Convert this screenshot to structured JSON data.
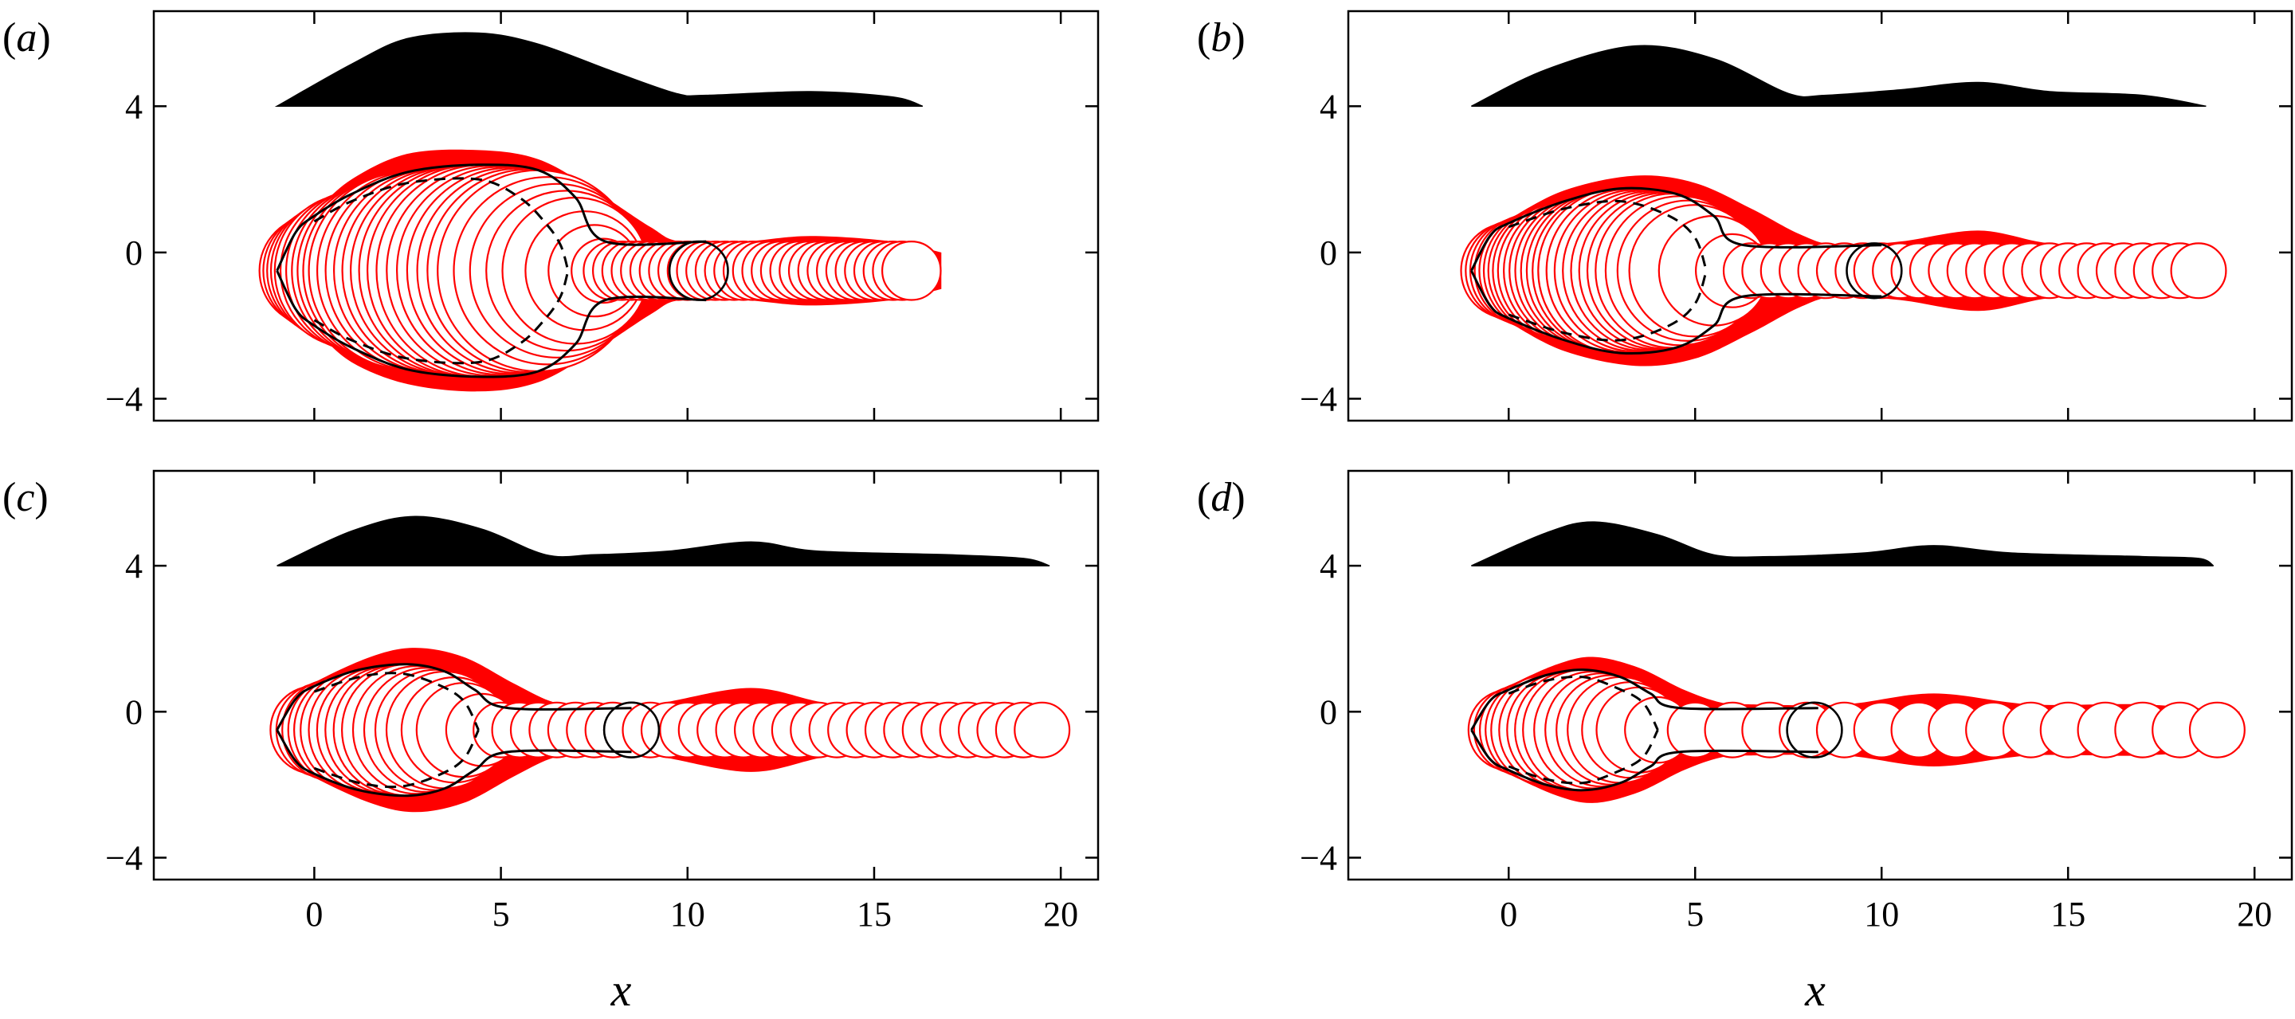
{
  "chart_data": [
    {
      "panel": "(a)",
      "type": "line",
      "xlim": [
        -4.3,
        21.0
      ],
      "ylim": [
        -4.6,
        6.6
      ],
      "xticks": [
        0,
        5,
        10,
        15,
        20
      ],
      "xtick_labels": [
        "0",
        "5",
        "10",
        "15",
        "20"
      ],
      "yticks": [
        -4,
        0,
        4
      ],
      "ytick_labels": [
        "−4",
        "0",
        "4"
      ],
      "xlabel": "",
      "profile": {
        "baseline": 4,
        "x": [
          -1.0,
          1.0,
          2.5,
          4.4,
          6.0,
          8.0,
          9.7,
          10.5,
          13.3,
          15.5,
          16.3
        ],
        "y": [
          4.0,
          5.15,
          5.85,
          6.0,
          5.7,
          4.95,
          4.35,
          4.3,
          4.4,
          4.25,
          4.0
        ]
      },
      "envelope": {
        "x": [
          -1.0,
          -0.5,
          0.0,
          1.0,
          2.5,
          4.4,
          6.0,
          7.5,
          9.0,
          9.8,
          11.5,
          13.3,
          15.5,
          16.8
        ],
        "upper": [
          -0.5,
          0.6,
          1.1,
          2.0,
          2.7,
          2.8,
          2.55,
          1.7,
          0.7,
          0.3,
          0.3,
          0.45,
          0.3,
          0.0
        ],
        "lower": [
          -0.5,
          -1.6,
          -2.1,
          -3.0,
          -3.6,
          -3.8,
          -3.55,
          -2.7,
          -1.7,
          -1.3,
          -1.3,
          -1.45,
          -1.3,
          -1.0
        ]
      },
      "inner_solid": {
        "x": [
          -1.0,
          -0.5,
          0.0,
          1.0,
          2.5,
          4.4,
          6.0,
          7.0,
          7.8,
          10.5
        ],
        "upper": [
          -0.5,
          0.55,
          1.0,
          1.6,
          2.2,
          2.4,
          2.25,
          1.5,
          0.3,
          0.3
        ],
        "lower": [
          -0.5,
          -1.55,
          -2.0,
          -2.6,
          -3.2,
          -3.4,
          -3.25,
          -2.5,
          -1.3,
          -1.3
        ]
      },
      "dashed": {
        "x": [
          0.0,
          1.0,
          2.5,
          4.4,
          5.5,
          6.2,
          6.6,
          6.8
        ],
        "upper": [
          0.85,
          1.4,
          1.9,
          2.0,
          1.5,
          0.8,
          0.2,
          -0.5
        ],
        "lower": [
          -1.85,
          -2.4,
          -2.9,
          -3.0,
          -2.5,
          -1.8,
          -1.2,
          -0.5
        ]
      },
      "circles": {
        "centers_x": [
          0.0,
          0.25,
          0.5,
          0.75,
          1.0,
          1.25,
          1.5,
          1.75,
          2.0,
          2.25,
          2.5,
          2.75,
          3.0,
          3.25,
          3.5,
          3.75,
          4.0,
          4.25,
          4.5,
          4.75,
          5.0,
          5.25,
          5.5,
          5.75,
          6.0,
          6.25,
          6.5,
          6.75,
          7.0,
          7.25,
          7.5,
          7.75,
          8.0,
          8.25,
          8.5,
          8.75,
          9.0,
          9.25,
          9.5,
          9.75,
          10.0,
          10.25,
          10.5,
          10.75,
          11.0,
          11.25,
          11.5,
          11.75,
          12.0,
          12.25,
          12.5,
          12.75,
          13.0,
          13.25,
          13.5,
          13.75,
          14.0,
          14.25,
          14.5,
          14.75,
          15.0,
          15.25,
          15.5,
          15.75,
          16.0
        ],
        "center_y": -0.5,
        "black_x": 10.3
      }
    },
    {
      "panel": "(b)",
      "type": "line",
      "xlim": [
        -4.3,
        21.0
      ],
      "ylim": [
        -4.6,
        6.6
      ],
      "xticks": [
        0,
        5,
        10,
        15,
        20
      ],
      "xtick_labels": [
        "0",
        "5",
        "10",
        "15",
        "20"
      ],
      "yticks": [
        -4,
        0,
        4
      ],
      "ytick_labels": [
        "−4",
        "0",
        "4"
      ],
      "xlabel": "",
      "profile": {
        "baseline": 4,
        "x": [
          -1.0,
          1.0,
          3.4,
          5.5,
          7.5,
          8.5,
          10.5,
          12.6,
          14.5,
          17.0,
          18.7
        ],
        "y": [
          4.0,
          5.0,
          5.65,
          5.3,
          4.35,
          4.3,
          4.45,
          4.65,
          4.4,
          4.3,
          4.0
        ]
      },
      "envelope": {
        "x": [
          -1.0,
          -0.5,
          0.0,
          1.5,
          3.4,
          5.0,
          6.5,
          7.8,
          8.8,
          10.5,
          12.6,
          14.5,
          16.5,
          18.9
        ],
        "upper": [
          -0.5,
          0.5,
          0.9,
          1.7,
          2.1,
          1.9,
          1.2,
          0.5,
          0.2,
          0.3,
          0.6,
          0.25,
          0.2,
          0.0
        ],
        "lower": [
          -0.5,
          -1.5,
          -1.9,
          -2.7,
          -3.1,
          -2.9,
          -2.2,
          -1.5,
          -1.2,
          -1.3,
          -1.6,
          -1.25,
          -1.2,
          -1.0
        ]
      },
      "inner_solid": {
        "x": [
          -1.0,
          -0.5,
          0.0,
          1.5,
          3.0,
          4.5,
          5.5,
          6.3,
          10.0
        ],
        "upper": [
          -0.5,
          0.45,
          0.8,
          1.4,
          1.75,
          1.6,
          1.0,
          0.2,
          0.2
        ],
        "lower": [
          -0.5,
          -1.45,
          -1.8,
          -2.4,
          -2.75,
          -2.6,
          -2.0,
          -1.2,
          -1.2
        ]
      },
      "dashed": {
        "x": [
          0.0,
          1.5,
          3.0,
          4.3,
          5.0,
          5.3
        ],
        "upper": [
          0.7,
          1.2,
          1.4,
          1.0,
          0.4,
          -0.5
        ],
        "lower": [
          -1.7,
          -2.2,
          -2.4,
          -2.0,
          -1.4,
          -0.5
        ]
      },
      "circles": {
        "centers_x": [
          0.0,
          0.2,
          0.4,
          0.6,
          0.8,
          1.0,
          1.2,
          1.4,
          1.6,
          1.8,
          2.0,
          2.2,
          2.4,
          2.6,
          2.8,
          3.0,
          3.2,
          3.4,
          3.6,
          3.8,
          4.0,
          4.2,
          4.4,
          4.6,
          4.8,
          5.0,
          5.5,
          6.0,
          6.5,
          7.0,
          7.5,
          8.0,
          8.5,
          9.0,
          9.5,
          10.0,
          10.5,
          11.0,
          11.5,
          12.0,
          12.5,
          13.0,
          13.5,
          14.0,
          14.5,
          15.0,
          15.5,
          16.0,
          16.5,
          17.0,
          17.5,
          18.0,
          18.5
        ],
        "center_y": -0.5,
        "black_x": 9.8
      }
    },
    {
      "panel": "(c)",
      "type": "line",
      "xlim": [
        -4.3,
        21.0
      ],
      "ylim": [
        -4.6,
        6.6
      ],
      "xticks": [
        0,
        5,
        10,
        15,
        20
      ],
      "xtick_labels": [
        "0",
        "5",
        "10",
        "15",
        "20"
      ],
      "yticks": [
        -4,
        0,
        4
      ],
      "ytick_labels": [
        "−4",
        "0",
        "4"
      ],
      "xlabel": "x",
      "profile": {
        "baseline": 4,
        "x": [
          -1.0,
          1.0,
          2.7,
          4.5,
          6.2,
          7.5,
          9.5,
          11.7,
          13.5,
          17.0,
          19.0,
          19.7
        ],
        "y": [
          4.0,
          4.95,
          5.35,
          5.0,
          4.3,
          4.3,
          4.4,
          4.65,
          4.4,
          4.3,
          4.2,
          4.0
        ]
      },
      "envelope": {
        "x": [
          -1.0,
          -0.5,
          0.0,
          1.5,
          2.7,
          4.0,
          5.3,
          6.3,
          7.0,
          9.0,
          11.7,
          14.0,
          17.0,
          19.9
        ],
        "upper": [
          -0.5,
          0.4,
          0.8,
          1.5,
          1.75,
          1.5,
          0.8,
          0.3,
          0.2,
          0.2,
          0.65,
          0.2,
          0.2,
          0.0
        ],
        "lower": [
          -0.5,
          -1.4,
          -1.8,
          -2.5,
          -2.75,
          -2.5,
          -1.8,
          -1.3,
          -1.2,
          -1.2,
          -1.65,
          -1.2,
          -1.2,
          -1.0
        ]
      },
      "inner_solid": {
        "x": [
          -1.0,
          -0.5,
          0.0,
          1.2,
          2.5,
          3.5,
          4.3,
          5.2,
          8.5
        ],
        "upper": [
          -0.5,
          0.35,
          0.7,
          1.15,
          1.3,
          1.1,
          0.6,
          0.1,
          0.1
        ],
        "lower": [
          -0.5,
          -1.35,
          -1.7,
          -2.15,
          -2.3,
          -2.1,
          -1.6,
          -1.1,
          -1.1
        ]
      },
      "dashed": {
        "x": [
          0.0,
          1.2,
          2.3,
          3.3,
          4.0,
          4.4
        ],
        "upper": [
          0.55,
          0.95,
          1.05,
          0.75,
          0.3,
          -0.5
        ],
        "lower": [
          -1.55,
          -1.95,
          -2.05,
          -1.75,
          -1.3,
          -0.5
        ]
      },
      "circles": {
        "centers_x": [
          0.0,
          0.25,
          0.5,
          0.75,
          1.0,
          1.25,
          1.5,
          1.75,
          2.0,
          2.25,
          2.5,
          2.75,
          3.0,
          3.25,
          3.5,
          3.75,
          4.0,
          4.5,
          5.0,
          5.5,
          6.0,
          6.5,
          7.0,
          7.5,
          8.0,
          8.5,
          9.0,
          9.5,
          10.0,
          10.5,
          11.0,
          11.5,
          12.0,
          12.5,
          13.0,
          13.5,
          14.0,
          14.5,
          15.0,
          15.5,
          16.0,
          16.5,
          17.0,
          17.5,
          18.0,
          18.5,
          19.0,
          19.5
        ],
        "center_y": -0.5,
        "black_x": 8.5
      }
    },
    {
      "panel": "(d)",
      "type": "line",
      "xlim": [
        -4.3,
        21.0
      ],
      "ylim": [
        -4.6,
        6.6
      ],
      "xticks": [
        0,
        5,
        10,
        15,
        20
      ],
      "xtick_labels": [
        "0",
        "5",
        "10",
        "15",
        "20"
      ],
      "yticks": [
        -4,
        0,
        4
      ],
      "ytick_labels": [
        "−4",
        "0",
        "4"
      ],
      "xlabel": "x",
      "profile": {
        "baseline": 4,
        "x": [
          -1.0,
          1.0,
          2.3,
          4.0,
          5.5,
          7.0,
          9.5,
          11.4,
          13.5,
          17.0,
          18.5,
          18.9
        ],
        "y": [
          4.0,
          4.9,
          5.2,
          4.85,
          4.3,
          4.25,
          4.35,
          4.55,
          4.35,
          4.25,
          4.2,
          4.0
        ]
      },
      "envelope": {
        "x": [
          -1.0,
          -0.5,
          0.0,
          1.3,
          2.3,
          3.5,
          4.7,
          5.7,
          6.5,
          9.0,
          11.4,
          14.0,
          17.0,
          19.6
        ],
        "upper": [
          -0.5,
          0.35,
          0.7,
          1.3,
          1.5,
          1.2,
          0.6,
          0.25,
          0.2,
          0.2,
          0.5,
          0.2,
          0.2,
          0.0
        ],
        "lower": [
          -0.5,
          -1.35,
          -1.7,
          -2.3,
          -2.5,
          -2.2,
          -1.6,
          -1.25,
          -1.2,
          -1.2,
          -1.5,
          -1.2,
          -1.2,
          -1.0
        ]
      },
      "inner_solid": {
        "x": [
          -1.0,
          -0.5,
          0.0,
          1.0,
          2.0,
          3.0,
          3.8,
          4.6,
          8.3
        ],
        "upper": [
          -0.5,
          0.3,
          0.6,
          1.0,
          1.15,
          0.95,
          0.5,
          0.1,
          0.1
        ],
        "lower": [
          -0.5,
          -1.3,
          -1.6,
          -2.0,
          -2.15,
          -1.95,
          -1.5,
          -1.1,
          -1.1
        ]
      },
      "dashed": {
        "x": [
          0.0,
          1.0,
          2.0,
          2.9,
          3.6,
          4.0
        ],
        "upper": [
          0.5,
          0.85,
          0.95,
          0.65,
          0.25,
          -0.5
        ],
        "lower": [
          -1.5,
          -1.85,
          -1.95,
          -1.65,
          -1.25,
          -0.5
        ]
      },
      "circles": {
        "centers_x": [
          0.0,
          0.25,
          0.5,
          0.75,
          1.0,
          1.25,
          1.5,
          1.75,
          2.0,
          2.25,
          2.5,
          2.75,
          3.0,
          3.25,
          3.5,
          4.0,
          5.0,
          6.0,
          7.0,
          8.0,
          9.0,
          10.0,
          11.0,
          12.0,
          13.0,
          14.0,
          15.0,
          16.0,
          17.0,
          18.0,
          19.0
        ],
        "center_y": -0.5,
        "black_x": 8.2
      }
    }
  ]
}
